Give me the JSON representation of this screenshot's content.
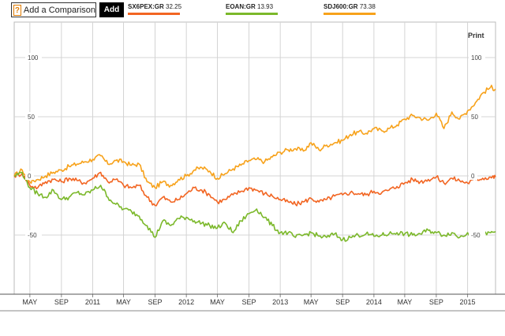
{
  "toolbar": {
    "compare_placeholder": "Add a Comparison",
    "help_icon_text": "?",
    "add_label": "Add",
    "print_label": "Print"
  },
  "legend": [
    {
      "ticker": "SX6PEX:GR",
      "value": "32.25",
      "color": "#f26522"
    },
    {
      "ticker": "EOAN:GR",
      "value": "13.93",
      "color": "#7bb82a"
    },
    {
      "ticker": "SDJ600:GR",
      "value": "73.38",
      "color": "#f7a21b"
    }
  ],
  "chart_data": {
    "type": "line",
    "x_tick_labels": [
      "MAY",
      "SEP",
      "2011",
      "MAY",
      "SEP",
      "2012",
      "MAY",
      "SEP",
      "2013",
      "MAY",
      "SEP",
      "2014",
      "MAY",
      "SEP",
      "2015"
    ],
    "y_tick_labels": [
      "100",
      "50",
      "0",
      "-50"
    ],
    "ylim": [
      -100,
      130
    ],
    "y_ticks": [
      100,
      50,
      0,
      -50
    ],
    "x_range": [
      "2010-03-01",
      "2015-04-20"
    ],
    "x_ticks": [
      "2010-05-01",
      "2010-09-01",
      "2011-01-01",
      "2011-05-01",
      "2011-09-01",
      "2012-01-01",
      "2012-05-01",
      "2012-09-01",
      "2013-01-01",
      "2013-05-01",
      "2013-09-01",
      "2014-01-01",
      "2014-05-01",
      "2014-09-01",
      "2015-01-01"
    ],
    "grid": true,
    "series": [
      {
        "name": "SDJ600:GR",
        "color": "#f7a21b",
        "points": [
          [
            "2010-03-01",
            0
          ],
          [
            "2010-04-01",
            5
          ],
          [
            "2010-05-01",
            -5
          ],
          [
            "2010-06-01",
            -3
          ],
          [
            "2010-07-01",
            0
          ],
          [
            "2010-08-01",
            3
          ],
          [
            "2010-09-01",
            5
          ],
          [
            "2010-10-01",
            8
          ],
          [
            "2010-11-01",
            10
          ],
          [
            "2010-12-01",
            12
          ],
          [
            "2011-01-01",
            14
          ],
          [
            "2011-02-01",
            17
          ],
          [
            "2011-03-01",
            10
          ],
          [
            "2011-04-01",
            13
          ],
          [
            "2011-05-01",
            12
          ],
          [
            "2011-06-01",
            9
          ],
          [
            "2011-07-01",
            10
          ],
          [
            "2011-08-01",
            -5
          ],
          [
            "2011-09-01",
            -10
          ],
          [
            "2011-10-01",
            -5
          ],
          [
            "2011-11-01",
            -8
          ],
          [
            "2011-12-01",
            -3
          ],
          [
            "2012-01-01",
            0
          ],
          [
            "2012-02-01",
            5
          ],
          [
            "2012-03-01",
            7
          ],
          [
            "2012-04-01",
            4
          ],
          [
            "2012-05-01",
            -2
          ],
          [
            "2012-06-01",
            2
          ],
          [
            "2012-07-01",
            6
          ],
          [
            "2012-08-01",
            9
          ],
          [
            "2012-09-01",
            13
          ],
          [
            "2012-10-01",
            14
          ],
          [
            "2012-11-01",
            12
          ],
          [
            "2012-12-01",
            16
          ],
          [
            "2013-01-01",
            20
          ],
          [
            "2013-02-01",
            22
          ],
          [
            "2013-03-01",
            23
          ],
          [
            "2013-04-01",
            21
          ],
          [
            "2013-05-01",
            28
          ],
          [
            "2013-06-01",
            22
          ],
          [
            "2013-07-01",
            26
          ],
          [
            "2013-08-01",
            28
          ],
          [
            "2013-09-01",
            30
          ],
          [
            "2013-10-01",
            35
          ],
          [
            "2013-11-01",
            37
          ],
          [
            "2013-12-01",
            36
          ],
          [
            "2014-01-01",
            40
          ],
          [
            "2014-02-01",
            38
          ],
          [
            "2014-03-01",
            40
          ],
          [
            "2014-04-01",
            43
          ],
          [
            "2014-05-01",
            48
          ],
          [
            "2014-06-01",
            51
          ],
          [
            "2014-07-01",
            49
          ],
          [
            "2014-08-01",
            47
          ],
          [
            "2014-09-01",
            53
          ],
          [
            "2014-10-01",
            40
          ],
          [
            "2014-11-01",
            54
          ],
          [
            "2014-12-01",
            48
          ],
          [
            "2015-01-01",
            55
          ],
          [
            "2015-02-01",
            62
          ],
          [
            "2015-03-01",
            70
          ],
          [
            "2015-04-01",
            75
          ],
          [
            "2015-04-20",
            73.38
          ]
        ]
      },
      {
        "name": "SX6PEX:GR",
        "color": "#f26522",
        "points": [
          [
            "2010-03-01",
            0
          ],
          [
            "2010-04-01",
            2
          ],
          [
            "2010-05-01",
            -8
          ],
          [
            "2010-06-01",
            -10
          ],
          [
            "2010-07-01",
            -5
          ],
          [
            "2010-08-01",
            -3
          ],
          [
            "2010-09-01",
            -5
          ],
          [
            "2010-10-01",
            -2
          ],
          [
            "2010-11-01",
            -4
          ],
          [
            "2010-12-01",
            -6
          ],
          [
            "2011-01-01",
            -2
          ],
          [
            "2011-02-01",
            3
          ],
          [
            "2011-03-01",
            -5
          ],
          [
            "2011-04-01",
            -3
          ],
          [
            "2011-05-01",
            -8
          ],
          [
            "2011-06-01",
            -10
          ],
          [
            "2011-07-01",
            -8
          ],
          [
            "2011-08-01",
            -18
          ],
          [
            "2011-09-01",
            -25
          ],
          [
            "2011-10-01",
            -18
          ],
          [
            "2011-11-01",
            -22
          ],
          [
            "2011-12-01",
            -20
          ],
          [
            "2012-01-01",
            -15
          ],
          [
            "2012-02-01",
            -10
          ],
          [
            "2012-03-01",
            -12
          ],
          [
            "2012-04-01",
            -16
          ],
          [
            "2012-05-01",
            -22
          ],
          [
            "2012-06-01",
            -20
          ],
          [
            "2012-07-01",
            -16
          ],
          [
            "2012-08-01",
            -13
          ],
          [
            "2012-09-01",
            -10
          ],
          [
            "2012-10-01",
            -12
          ],
          [
            "2012-11-01",
            -15
          ],
          [
            "2012-12-01",
            -17
          ],
          [
            "2013-01-01",
            -20
          ],
          [
            "2013-02-01",
            -22
          ],
          [
            "2013-03-01",
            -24
          ],
          [
            "2013-04-01",
            -22
          ],
          [
            "2013-05-01",
            -19
          ],
          [
            "2013-06-01",
            -22
          ],
          [
            "2013-07-01",
            -20
          ],
          [
            "2013-08-01",
            -17
          ],
          [
            "2013-09-01",
            -16
          ],
          [
            "2013-10-01",
            -14
          ],
          [
            "2013-11-01",
            -15
          ],
          [
            "2013-12-01",
            -16
          ],
          [
            "2014-01-01",
            -13
          ],
          [
            "2014-02-01",
            -14
          ],
          [
            "2014-03-01",
            -12
          ],
          [
            "2014-04-01",
            -9
          ],
          [
            "2014-05-01",
            -6
          ],
          [
            "2014-06-01",
            -3
          ],
          [
            "2014-07-01",
            -5
          ],
          [
            "2014-08-01",
            -3
          ],
          [
            "2014-09-01",
            -1
          ],
          [
            "2014-10-01",
            -6
          ],
          [
            "2014-11-01",
            -2
          ],
          [
            "2014-12-01",
            -4
          ],
          [
            "2015-01-01",
            -6
          ],
          [
            "2015-02-01",
            -3
          ],
          [
            "2015-03-01",
            -2
          ],
          [
            "2015-04-01",
            -1
          ],
          [
            "2015-04-20",
            -1
          ]
        ]
      },
      {
        "name": "EOAN:GR",
        "color": "#7bb82a",
        "points": [
          [
            "2010-03-01",
            0
          ],
          [
            "2010-04-01",
            3
          ],
          [
            "2010-05-01",
            -10
          ],
          [
            "2010-06-01",
            -15
          ],
          [
            "2010-07-01",
            -18
          ],
          [
            "2010-08-01",
            -12
          ],
          [
            "2010-09-01",
            -20
          ],
          [
            "2010-10-01",
            -18
          ],
          [
            "2010-11-01",
            -14
          ],
          [
            "2010-12-01",
            -16
          ],
          [
            "2011-01-01",
            -12
          ],
          [
            "2011-02-01",
            -8
          ],
          [
            "2011-03-01",
            -18
          ],
          [
            "2011-04-01",
            -24
          ],
          [
            "2011-05-01",
            -28
          ],
          [
            "2011-06-01",
            -30
          ],
          [
            "2011-07-01",
            -34
          ],
          [
            "2011-08-01",
            -42
          ],
          [
            "2011-09-01",
            -52
          ],
          [
            "2011-10-01",
            -38
          ],
          [
            "2011-11-01",
            -42
          ],
          [
            "2011-12-01",
            -36
          ],
          [
            "2012-01-01",
            -35
          ],
          [
            "2012-02-01",
            -38
          ],
          [
            "2012-03-01",
            -40
          ],
          [
            "2012-04-01",
            -42
          ],
          [
            "2012-05-01",
            -44
          ],
          [
            "2012-06-01",
            -40
          ],
          [
            "2012-07-01",
            -48
          ],
          [
            "2012-08-01",
            -38
          ],
          [
            "2012-09-01",
            -32
          ],
          [
            "2012-10-01",
            -28
          ],
          [
            "2012-11-01",
            -35
          ],
          [
            "2012-12-01",
            -42
          ],
          [
            "2013-01-01",
            -48
          ],
          [
            "2013-02-01",
            -48
          ],
          [
            "2013-03-01",
            -52
          ],
          [
            "2013-04-01",
            -50
          ],
          [
            "2013-05-01",
            -48
          ],
          [
            "2013-06-01",
            -51
          ],
          [
            "2013-07-01",
            -52
          ],
          [
            "2013-08-01",
            -49
          ],
          [
            "2013-09-01",
            -54
          ],
          [
            "2013-10-01",
            -52
          ],
          [
            "2013-11-01",
            -50
          ],
          [
            "2013-12-01",
            -49
          ],
          [
            "2014-01-01",
            -51
          ],
          [
            "2014-02-01",
            -50
          ],
          [
            "2014-03-01",
            -49
          ],
          [
            "2014-04-01",
            -48
          ],
          [
            "2014-05-01",
            -49
          ],
          [
            "2014-06-01",
            -50
          ],
          [
            "2014-07-01",
            -49
          ],
          [
            "2014-08-01",
            -46
          ],
          [
            "2014-09-01",
            -48
          ],
          [
            "2014-10-01",
            -50
          ],
          [
            "2014-11-01",
            -48
          ],
          [
            "2014-12-01",
            -52
          ],
          [
            "2015-01-01",
            -48
          ],
          [
            "2015-02-01",
            -49
          ],
          [
            "2015-03-01",
            -50
          ],
          [
            "2015-04-01",
            -48
          ],
          [
            "2015-04-20",
            -47
          ]
        ]
      }
    ]
  }
}
